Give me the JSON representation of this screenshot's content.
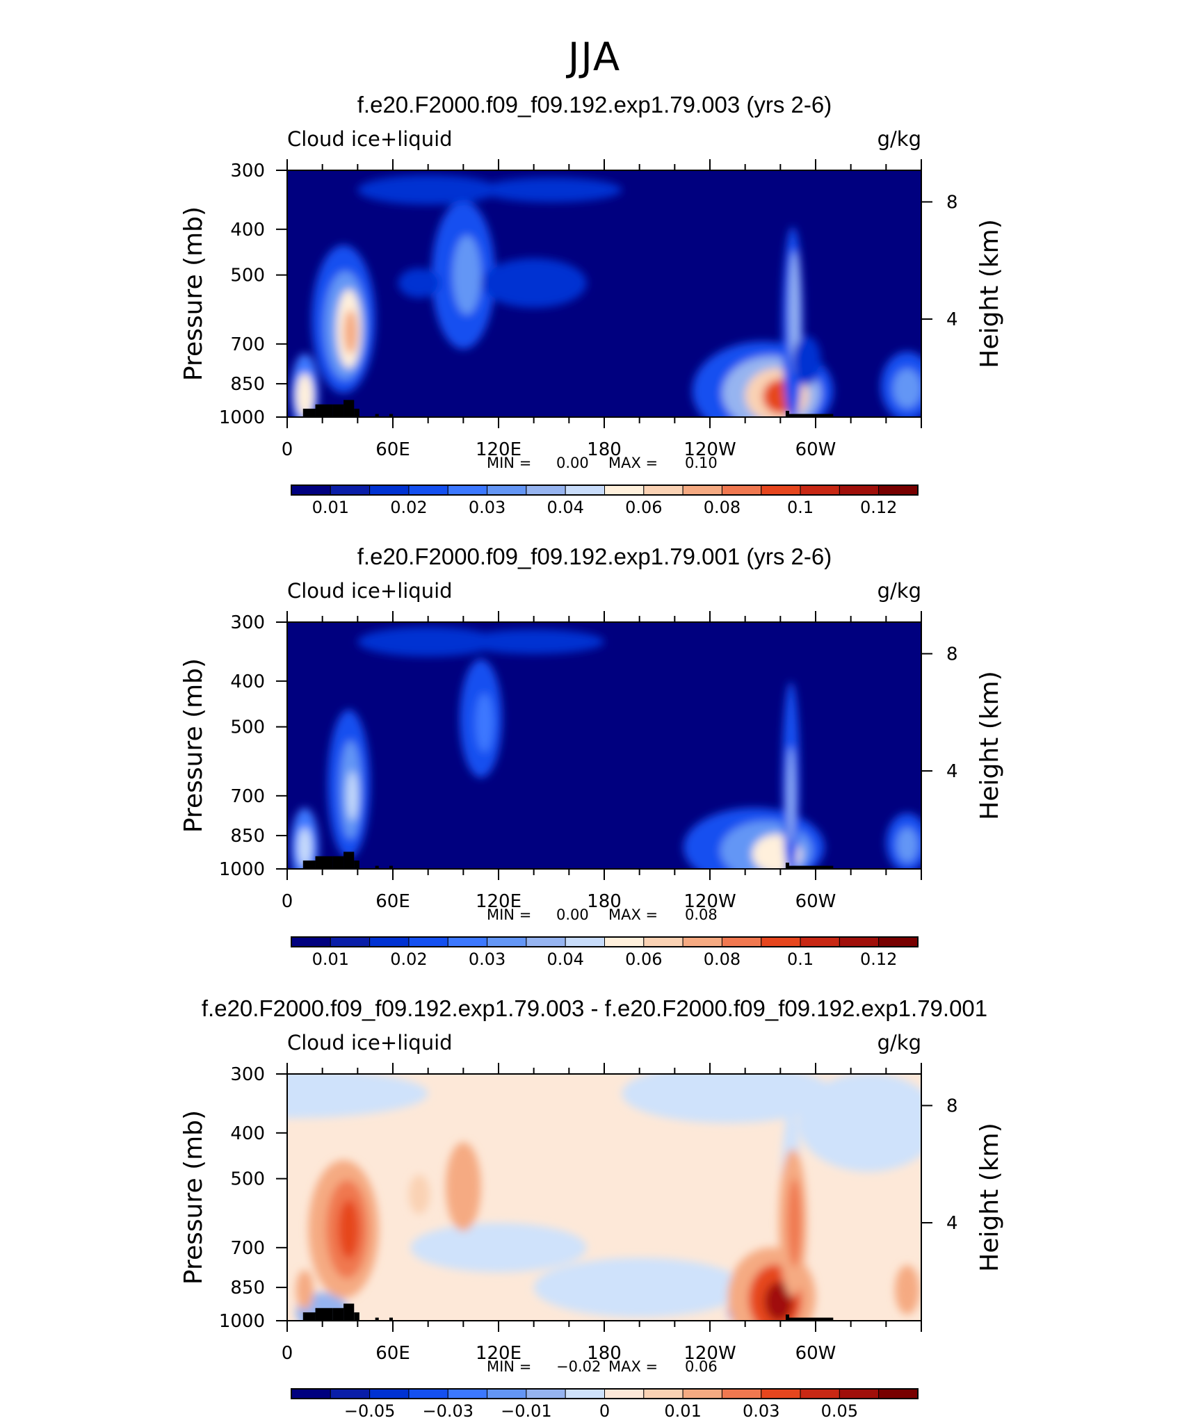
{
  "figure": {
    "title": "JJA"
  },
  "chart_data": [
    {
      "type": "contour",
      "title": "f.e20.F2000.f09_f09.192.exp1.79.003 (yrs 2-6)",
      "variable": "Cloud ice+liquid",
      "units": "g/kg",
      "ylabel": "Pressure (mb)",
      "y2label": "Height (km)",
      "yticks": [
        "300",
        "400",
        "500",
        "700",
        "850",
        "1000"
      ],
      "y2ticks": [
        "8",
        "4"
      ],
      "xticks": [
        "0",
        "60E",
        "120E",
        "180",
        "120W",
        "60W"
      ],
      "min_label": "MIN =",
      "min_value": "0.00",
      "max_label": "MAX =",
      "max_value": "0.10",
      "colorbar_labels": [
        "0.01",
        "0.02",
        "0.03",
        "0.04",
        "0.06",
        "0.08",
        "0.1",
        "0.12"
      ],
      "colorbar_colors": [
        "#00007f",
        "#0a1ea8",
        "#0032d2",
        "#1450f0",
        "#3c78ff",
        "#6496f5",
        "#96b4f0",
        "#c8dcfa",
        "#fff0dc",
        "#fad2b4",
        "#f5aa82",
        "#f07850",
        "#e6461e",
        "#c82814",
        "#a00f0a",
        "#780000"
      ]
    },
    {
      "type": "contour",
      "title": "f.e20.F2000.f09_f09.192.exp1.79.001 (yrs 2-6)",
      "variable": "Cloud ice+liquid",
      "units": "g/kg",
      "ylabel": "Pressure (mb)",
      "y2label": "Height (km)",
      "yticks": [
        "300",
        "400",
        "500",
        "700",
        "850",
        "1000"
      ],
      "y2ticks": [
        "8",
        "4"
      ],
      "xticks": [
        "0",
        "60E",
        "120E",
        "180",
        "120W",
        "60W"
      ],
      "min_label": "MIN =",
      "min_value": "0.00",
      "max_label": "MAX =",
      "max_value": "0.08",
      "colorbar_labels": [
        "0.01",
        "0.02",
        "0.03",
        "0.04",
        "0.06",
        "0.08",
        "0.1",
        "0.12"
      ],
      "colorbar_colors": [
        "#00007f",
        "#0a1ea8",
        "#0032d2",
        "#1450f0",
        "#3c78ff",
        "#6496f5",
        "#96b4f0",
        "#c8dcfa",
        "#fff0dc",
        "#fad2b4",
        "#f5aa82",
        "#f07850",
        "#e6461e",
        "#c82814",
        "#a00f0a",
        "#780000"
      ]
    },
    {
      "type": "contour",
      "title": "f.e20.F2000.f09_f09.192.exp1.79.003 - f.e20.F2000.f09_f09.192.exp1.79.001",
      "variable": "Cloud ice+liquid",
      "units": "g/kg",
      "ylabel": "Pressure (mb)",
      "y2label": "Height (km)",
      "yticks": [
        "300",
        "400",
        "500",
        "700",
        "850",
        "1000"
      ],
      "y2ticks": [
        "8",
        "4"
      ],
      "xticks": [
        "0",
        "60E",
        "120E",
        "180",
        "120W",
        "60W"
      ],
      "min_label": "MIN =",
      "min_value": "−0.02",
      "max_label": "MAX =",
      "max_value": "0.06",
      "colorbar_labels": [
        "−0.05",
        "−0.03",
        "−0.01",
        "0",
        "0.01",
        "0.03",
        "0.05"
      ],
      "colorbar_colors": [
        "#00007f",
        "#0a1ea8",
        "#0032d2",
        "#1450f0",
        "#3c78ff",
        "#6496f5",
        "#96b4f0",
        "#cfe2fb",
        "#fde8d8",
        "#fad2b4",
        "#f5aa82",
        "#f07850",
        "#e6461e",
        "#c82814",
        "#a00f0a",
        "#780000"
      ]
    }
  ]
}
